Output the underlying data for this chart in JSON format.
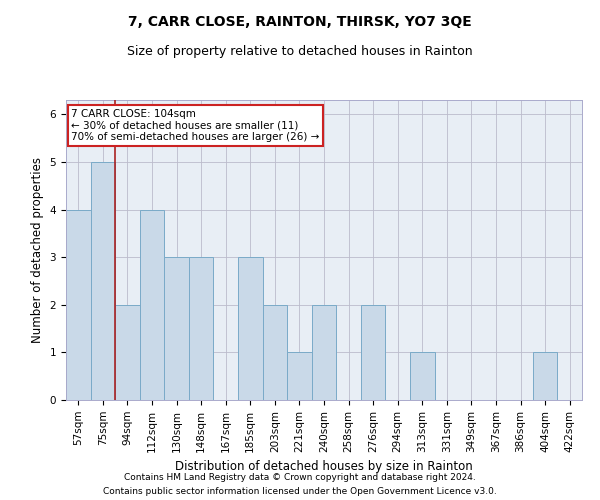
{
  "title": "7, CARR CLOSE, RAINTON, THIRSK, YO7 3QE",
  "subtitle": "Size of property relative to detached houses in Rainton",
  "xlabel": "Distribution of detached houses by size in Rainton",
  "ylabel": "Number of detached properties",
  "categories": [
    "57sqm",
    "75sqm",
    "94sqm",
    "112sqm",
    "130sqm",
    "148sqm",
    "167sqm",
    "185sqm",
    "203sqm",
    "221sqm",
    "240sqm",
    "258sqm",
    "276sqm",
    "294sqm",
    "313sqm",
    "331sqm",
    "349sqm",
    "367sqm",
    "386sqm",
    "404sqm",
    "422sqm"
  ],
  "values": [
    4,
    5,
    2,
    4,
    3,
    3,
    0,
    3,
    2,
    1,
    2,
    0,
    2,
    0,
    1,
    0,
    0,
    0,
    0,
    1,
    0
  ],
  "bar_color": "#c9d9e8",
  "bar_edge_color": "#7aaac8",
  "vline_index": 1.5,
  "vline_color": "#aa2222",
  "annotation_line1": "7 CARR CLOSE: 104sqm",
  "annotation_line2": "← 30% of detached houses are smaller (11)",
  "annotation_line3": "70% of semi-detached houses are larger (26) →",
  "annotation_box_color": "#ffffff",
  "annotation_box_edge": "#cc2222",
  "ylim": [
    0,
    6.3
  ],
  "yticks": [
    0,
    1,
    2,
    3,
    4,
    5,
    6
  ],
  "footnote1": "Contains HM Land Registry data © Crown copyright and database right 2024.",
  "footnote2": "Contains public sector information licensed under the Open Government Licence v3.0.",
  "title_fontsize": 10,
  "subtitle_fontsize": 9,
  "axis_label_fontsize": 8.5,
  "tick_fontsize": 7.5,
  "annotation_fontsize": 7.5,
  "footnote_fontsize": 6.5,
  "bg_color": "#e8eef5"
}
